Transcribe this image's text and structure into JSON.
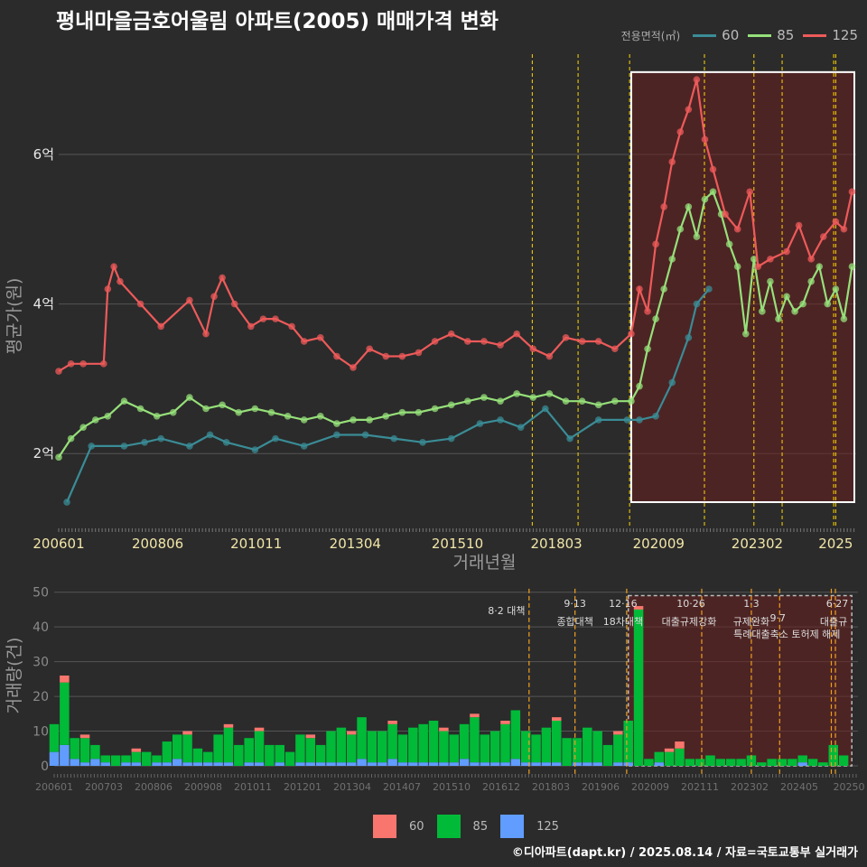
{
  "title": "평내마을금호어울림 아파트(2005) 매매가격 변화",
  "credit": "©디아파트(dapt.kr) / 2025.08.14 / 자료=국토교통부 실거래가",
  "colors": {
    "s60": "#3a8c96",
    "s85": "#96e07a",
    "s125": "#ee5a5a",
    "bar60": "#f8766d",
    "bar85": "#00ba38",
    "bar125": "#619cff",
    "vline": "#ffd700",
    "bvline": "#f0a020",
    "region": "#6a1f1f"
  },
  "legend_top": {
    "title": "전용면적(㎡)",
    "items": [
      {
        "label": "60"
      },
      {
        "label": "85"
      },
      {
        "label": "125"
      }
    ]
  },
  "legend_bottom": {
    "items": [
      {
        "label": "60"
      },
      {
        "label": "85"
      },
      {
        "label": "125"
      }
    ]
  },
  "chart_data": [
    {
      "type": "line",
      "title": "평내마을금호어울림 아파트(2005) 매매가격 변화",
      "xlabel": "거래년월",
      "ylabel": "평균가(원)",
      "x_ticks": [
        "200601",
        "200806",
        "201011",
        "201304",
        "201510",
        "201803",
        "202009",
        "202302",
        "2025"
      ],
      "x_tick_pos": [
        2006.0,
        2008.42,
        2010.83,
        2013.25,
        2015.75,
        2018.17,
        2020.67,
        2023.08,
        2025.0
      ],
      "y_ticks": [
        {
          "v": 2,
          "label": "2억"
        },
        {
          "v": 4,
          "label": "4억"
        },
        {
          "v": 6,
          "label": "6억"
        }
      ],
      "xlim": [
        2006.0,
        2025.5
      ],
      "ylim": [
        1.0,
        7.4
      ],
      "unit": "억원",
      "policy_lines": [
        2017.58,
        2018.7,
        2019.96,
        2021.79,
        2023.0,
        2023.69,
        2024.95,
        2025.0
      ],
      "highlight_region": [
        2020.0,
        2025.5
      ],
      "series": [
        {
          "name": "60",
          "x": [
            2006.2,
            2006.8,
            2007.6,
            2008.1,
            2008.5,
            2009.2,
            2009.7,
            2010.1,
            2010.8,
            2011.3,
            2012.0,
            2012.8,
            2013.5,
            2014.2,
            2014.9,
            2015.6,
            2016.3,
            2016.8,
            2017.3,
            2017.9,
            2018.5,
            2019.2,
            2019.9,
            2020.2,
            2020.6,
            2021.0,
            2021.4,
            2021.6,
            2021.9
          ],
          "y": [
            1.35,
            2.1,
            2.1,
            2.15,
            2.2,
            2.1,
            2.25,
            2.15,
            2.05,
            2.2,
            2.1,
            2.25,
            2.25,
            2.2,
            2.15,
            2.2,
            2.4,
            2.45,
            2.35,
            2.6,
            2.2,
            2.45,
            2.45,
            2.45,
            2.5,
            2.95,
            3.55,
            4.0,
            4.2
          ]
        },
        {
          "name": "85",
          "x": [
            2006.0,
            2006.3,
            2006.6,
            2006.9,
            2007.2,
            2007.6,
            2008.0,
            2008.4,
            2008.8,
            2009.2,
            2009.6,
            2010.0,
            2010.4,
            2010.8,
            2011.2,
            2011.6,
            2012.0,
            2012.4,
            2012.8,
            2013.2,
            2013.6,
            2014.0,
            2014.4,
            2014.8,
            2015.2,
            2015.6,
            2016.0,
            2016.4,
            2016.8,
            2017.2,
            2017.6,
            2018.0,
            2018.4,
            2018.8,
            2019.2,
            2019.6,
            2020.0,
            2020.2,
            2020.4,
            2020.6,
            2020.8,
            2021.0,
            2021.2,
            2021.4,
            2021.6,
            2021.8,
            2022.0,
            2022.2,
            2022.4,
            2022.6,
            2022.8,
            2023.0,
            2023.2,
            2023.4,
            2023.6,
            2023.8,
            2024.0,
            2024.2,
            2024.4,
            2024.6,
            2024.8,
            2025.0,
            2025.2,
            2025.4
          ],
          "y": [
            1.95,
            2.2,
            2.35,
            2.45,
            2.5,
            2.7,
            2.6,
            2.5,
            2.55,
            2.75,
            2.6,
            2.65,
            2.55,
            2.6,
            2.55,
            2.5,
            2.45,
            2.5,
            2.4,
            2.45,
            2.45,
            2.5,
            2.55,
            2.55,
            2.6,
            2.65,
            2.7,
            2.75,
            2.7,
            2.8,
            2.75,
            2.8,
            2.7,
            2.7,
            2.65,
            2.7,
            2.7,
            2.9,
            3.4,
            3.8,
            4.2,
            4.6,
            5.0,
            5.3,
            4.9,
            5.4,
            5.5,
            5.2,
            4.8,
            4.5,
            3.6,
            4.6,
            3.9,
            4.3,
            3.8,
            4.1,
            3.9,
            4.0,
            4.3,
            4.5,
            4.0,
            4.2,
            3.8,
            4.5
          ]
        },
        {
          "name": "125",
          "x": [
            2006.0,
            2006.3,
            2006.6,
            2007.1,
            2007.2,
            2007.35,
            2007.5,
            2008.0,
            2008.5,
            2009.2,
            2009.6,
            2009.8,
            2010.0,
            2010.3,
            2010.7,
            2011.0,
            2011.3,
            2011.7,
            2012.0,
            2012.4,
            2012.8,
            2013.2,
            2013.6,
            2014.0,
            2014.4,
            2014.8,
            2015.2,
            2015.6,
            2016.0,
            2016.4,
            2016.8,
            2017.2,
            2017.6,
            2018.0,
            2018.4,
            2018.8,
            2019.2,
            2019.6,
            2020.0,
            2020.2,
            2020.4,
            2020.6,
            2020.8,
            2021.0,
            2021.2,
            2021.4,
            2021.6,
            2021.8,
            2022.0,
            2022.3,
            2022.6,
            2022.9,
            2023.1,
            2023.4,
            2023.8,
            2024.1,
            2024.4,
            2024.7,
            2025.0,
            2025.2,
            2025.4
          ],
          "y": [
            3.1,
            3.2,
            3.2,
            3.2,
            4.2,
            4.5,
            4.3,
            4.0,
            3.7,
            4.05,
            3.6,
            4.1,
            4.35,
            4.0,
            3.7,
            3.8,
            3.8,
            3.7,
            3.5,
            3.55,
            3.3,
            3.15,
            3.4,
            3.3,
            3.3,
            3.35,
            3.5,
            3.6,
            3.5,
            3.5,
            3.45,
            3.6,
            3.4,
            3.3,
            3.55,
            3.5,
            3.5,
            3.4,
            3.6,
            4.2,
            3.9,
            4.8,
            5.3,
            5.9,
            6.3,
            6.6,
            7.0,
            6.2,
            5.8,
            5.2,
            5.0,
            5.5,
            4.5,
            4.6,
            4.7,
            5.05,
            4.6,
            4.9,
            5.1,
            5.0,
            5.5
          ]
        }
      ]
    },
    {
      "type": "bar",
      "title": "",
      "xlabel": "",
      "ylabel": "거래량(건)",
      "x_ticks": [
        "200601",
        "200703",
        "200806",
        "200908",
        "201011",
        "201201",
        "201304",
        "201407",
        "201510",
        "201612",
        "201803",
        "201906",
        "202009",
        "202111",
        "202302",
        "202405",
        "20250"
      ],
      "y_ticks": [
        0,
        10,
        20,
        30,
        40,
        50
      ],
      "ylim": [
        0,
        52
      ],
      "series_names": [
        "125",
        "85",
        "60"
      ],
      "sample_counts": {
        "x": [
          2006.0,
          2006.25,
          2006.5,
          2006.75,
          2007.0,
          2007.25,
          2007.5,
          2007.75,
          2008.0,
          2008.25,
          2008.5,
          2008.75,
          2009.0,
          2009.25,
          2009.5,
          2009.75,
          2010.0,
          2010.25,
          2010.5,
          2010.75,
          2011.0,
          2011.25,
          2011.5,
          2011.75,
          2012.0,
          2012.25,
          2012.5,
          2012.75,
          2013.0,
          2013.25,
          2013.5,
          2013.75,
          2014.0,
          2014.25,
          2014.5,
          2014.75,
          2015.0,
          2015.25,
          2015.5,
          2015.75,
          2016.0,
          2016.25,
          2016.5,
          2016.75,
          2017.0,
          2017.25,
          2017.5,
          2017.75,
          2018.0,
          2018.25,
          2018.5,
          2018.75,
          2019.0,
          2019.25,
          2019.5,
          2019.75,
          2020.0,
          2020.25,
          2020.5,
          2020.75,
          2021.0,
          2021.25,
          2021.5,
          2021.75,
          2022.0,
          2022.25,
          2022.5,
          2022.75,
          2023.0,
          2023.25,
          2023.5,
          2023.75,
          2024.0,
          2024.25,
          2024.5,
          2024.75,
          2025.0,
          2025.25
        ],
        "v125": [
          4,
          6,
          2,
          1,
          2,
          1,
          0,
          1,
          1,
          0,
          1,
          1,
          2,
          1,
          1,
          1,
          1,
          1,
          0,
          1,
          1,
          0,
          1,
          0,
          1,
          1,
          1,
          1,
          1,
          1,
          2,
          1,
          1,
          2,
          1,
          1,
          1,
          1,
          1,
          1,
          2,
          1,
          1,
          1,
          1,
          2,
          1,
          1,
          1,
          1,
          0,
          1,
          1,
          1,
          0,
          1,
          1,
          0,
          0,
          1,
          0,
          0,
          0,
          0,
          0,
          0,
          0,
          0,
          0,
          0,
          0,
          0,
          0,
          1,
          0,
          0,
          0,
          0
        ],
        "v85": [
          8,
          18,
          6,
          7,
          4,
          2,
          3,
          2,
          3,
          4,
          2,
          6,
          7,
          8,
          4,
          3,
          8,
          10,
          6,
          7,
          9,
          6,
          5,
          4,
          8,
          7,
          5,
          9,
          10,
          8,
          12,
          9,
          9,
          10,
          8,
          10,
          11,
          12,
          9,
          8,
          10,
          13,
          8,
          9,
          11,
          14,
          9,
          8,
          10,
          12,
          8,
          7,
          10,
          9,
          6,
          8,
          12,
          45,
          2,
          3,
          4,
          5,
          2,
          2,
          3,
          2,
          2,
          2,
          3,
          1,
          2,
          2,
          2,
          2,
          2,
          1,
          6,
          3
        ],
        "v60": [
          0,
          2,
          0,
          1,
          0,
          0,
          0,
          0,
          1,
          0,
          0,
          0,
          0,
          1,
          0,
          0,
          0,
          1,
          0,
          0,
          1,
          0,
          0,
          0,
          0,
          1,
          0,
          0,
          0,
          1,
          0,
          0,
          0,
          1,
          0,
          0,
          0,
          0,
          1,
          0,
          0,
          1,
          0,
          0,
          1,
          0,
          0,
          0,
          0,
          1,
          0,
          0,
          0,
          0,
          0,
          1,
          0,
          1,
          0,
          0,
          1,
          2,
          0,
          0,
          0,
          0,
          0,
          0,
          0,
          0,
          0,
          0,
          0,
          0,
          0,
          0,
          0,
          0
        ]
      },
      "policy_lines": [
        {
          "x": 2017.58,
          "label": "8·2 대책"
        },
        {
          "x": 2018.7,
          "label": "9·13 종합대책"
        },
        {
          "x": 2019.96,
          "label": "12·16 18차대책"
        },
        {
          "x": 2021.79,
          "label": "10·26 대출규제강화"
        },
        {
          "x": 2023.0,
          "label": "1·3 규제완화"
        },
        {
          "x": 2023.69,
          "label": "9·7 특례대출축소 토허제 해제"
        },
        {
          "x": 2024.95,
          "label": ""
        },
        {
          "x": 2025.05,
          "label": "6·27 대출규"
        }
      ]
    }
  ],
  "axis_text": {
    "top_ylabel": "평균가(원)",
    "top_xlabel": "거래년월",
    "bottom_ylabel": "거래량(건)",
    "annotations": [
      {
        "label": "8·2 대책"
      },
      {
        "label": "9·13"
      },
      {
        "label": "종합대책"
      },
      {
        "label": "12·16"
      },
      {
        "label": "18차대책"
      },
      {
        "label": "10·26"
      },
      {
        "label": "대출규제강화"
      },
      {
        "label": "1·3"
      },
      {
        "label": "규제완화"
      },
      {
        "label": "9·7"
      },
      {
        "label": "특례대출축소 토허제 해제"
      },
      {
        "label": "6·27"
      },
      {
        "label": "대출규"
      }
    ]
  }
}
